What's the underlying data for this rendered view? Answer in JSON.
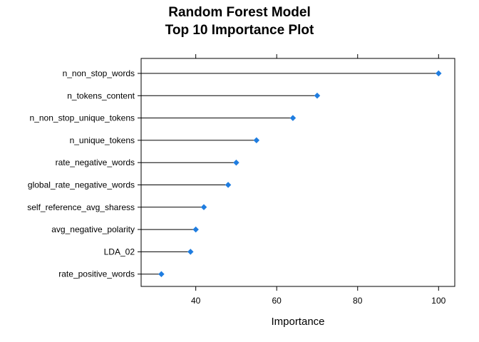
{
  "chart_data": {
    "type": "dot",
    "title_lines": [
      "Random Forest Model",
      "Top 10 Importance Plot"
    ],
    "xlabel": "Importance",
    "ylabel": "",
    "xlim": [
      26.5,
      104
    ],
    "xticks": [
      40,
      60,
      80,
      100
    ],
    "grid": false,
    "legend": "none",
    "categories": [
      "n_non_stop_words",
      "n_tokens_content",
      "n_non_stop_unique_tokens",
      "n_unique_tokens",
      "rate_negative_words",
      "global_rate_negative_words",
      "self_reference_avg_sharess",
      "avg_negative_polarity",
      "LDA_02",
      "rate_positive_words"
    ],
    "values": [
      100,
      70,
      64,
      55,
      50,
      48,
      42,
      40,
      38.7,
      31.5
    ],
    "marker_color": "#1f7de0",
    "line_color": "#000000"
  }
}
